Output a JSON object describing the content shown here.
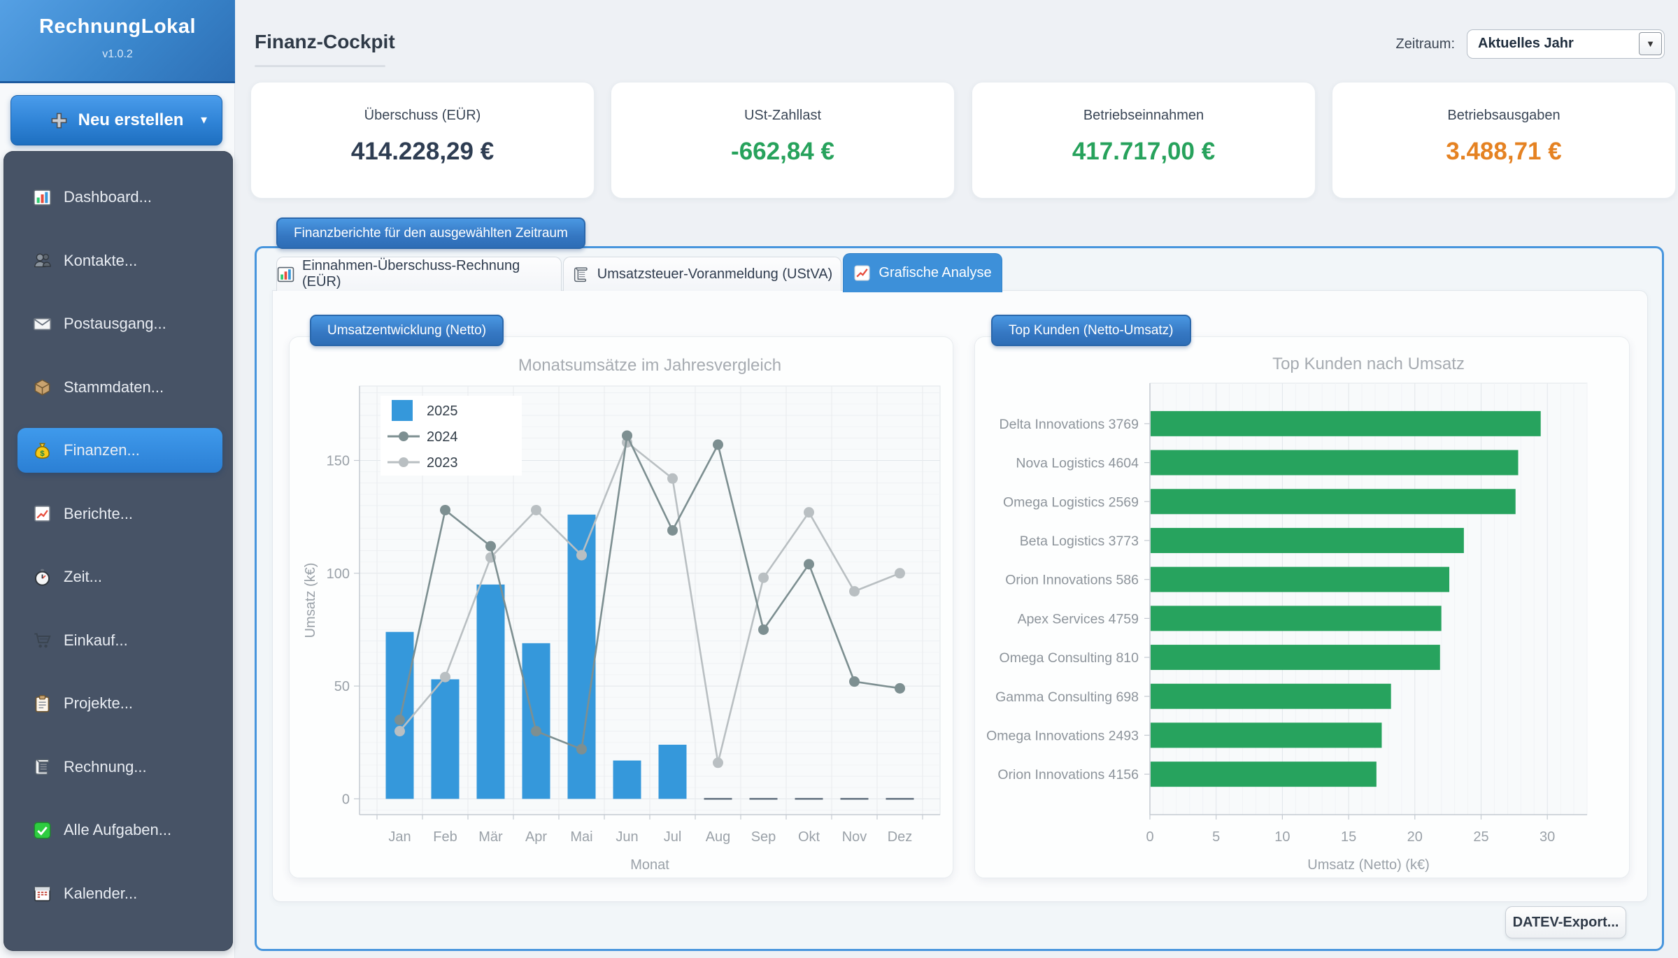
{
  "app": {
    "name": "RechnungLokal",
    "version": "v1.0.2"
  },
  "sidebar": {
    "new_button": {
      "label": "Neu erstellen"
    },
    "items": [
      {
        "id": "dashboard",
        "icon": "dashboard-icon",
        "label": "Dashboard...",
        "active": false
      },
      {
        "id": "kontakte",
        "icon": "contacts-icon",
        "label": "Kontakte...",
        "active": false
      },
      {
        "id": "postausgang",
        "icon": "mail-icon",
        "label": "Postausgang...",
        "active": false
      },
      {
        "id": "stammdaten",
        "icon": "box-icon",
        "label": "Stammdaten...",
        "active": false
      },
      {
        "id": "finanzen",
        "icon": "moneybag-icon",
        "label": "Finanzen...",
        "active": true
      },
      {
        "id": "berichte",
        "icon": "report-icon",
        "label": "Berichte...",
        "active": false
      },
      {
        "id": "zeit",
        "icon": "stopwatch-icon",
        "label": "Zeit...",
        "active": false
      },
      {
        "id": "einkauf",
        "icon": "cart-icon",
        "label": "Einkauf...",
        "active": false
      },
      {
        "id": "projekte",
        "icon": "clipboard-icon",
        "label": "Projekte...",
        "active": false
      },
      {
        "id": "rechnung",
        "icon": "scroll-icon",
        "label": "Rechnung...",
        "active": false
      },
      {
        "id": "alle-aufgaben",
        "icon": "check-icon",
        "label": "Alle Aufgaben...",
        "active": false
      },
      {
        "id": "kalender",
        "icon": "calendar-icon",
        "label": "Kalender...",
        "active": false
      }
    ]
  },
  "header": {
    "title": "Finanz-Cockpit",
    "period_label": "Zeitraum:",
    "period_value": "Aktuelles Jahr"
  },
  "kpis": [
    {
      "label": "Überschuss (EÜR)",
      "value": "414.228,29 €",
      "color": "#2e3d52"
    },
    {
      "label": "USt-Zahllast",
      "value": "-662,84 €",
      "color": "#27a25c"
    },
    {
      "label": "Betriebseinnahmen",
      "value": "417.717,00 €",
      "color": "#27a25c"
    },
    {
      "label": "Betriebsausgaben",
      "value": "3.488,71 €",
      "color": "#e58222"
    }
  ],
  "reports": {
    "legend": "Finanzberichte für den ausgewählten Zeitraum",
    "tabs": [
      {
        "id": "euer",
        "icon": "barchart-icon",
        "label": "Einnahmen-Überschuss-Rechnung (EÜR)",
        "active": false
      },
      {
        "id": "ustva",
        "icon": "scroll-icon",
        "label": "Umsatzsteuer-Voranmeldung (UStVA)",
        "active": false
      },
      {
        "id": "grafik",
        "icon": "linechart-icon",
        "label": "Grafische Analyse",
        "active": true
      }
    ]
  },
  "charts": {
    "left_badge": "Umsatzentwicklung (Netto)",
    "right_badge": "Top Kunden (Netto-Umsatz)"
  },
  "chart_data": [
    {
      "type": "bar",
      "title": "Monatsumsätze im Jahresvergleich",
      "categories": [
        "Jan",
        "Feb",
        "Mär",
        "Apr",
        "Mai",
        "Jun",
        "Jul",
        "Aug",
        "Sep",
        "Okt",
        "Nov",
        "Dez"
      ],
      "series": [
        {
          "name": "2025",
          "type": "bar",
          "color": "#3598db",
          "values": [
            74,
            53,
            95,
            69,
            126,
            17,
            24,
            0,
            0,
            0,
            0,
            0
          ]
        },
        {
          "name": "2024",
          "type": "line",
          "color": "#7d8f91",
          "values": [
            35,
            128,
            112,
            30,
            22,
            161,
            119,
            157,
            75,
            104,
            52,
            49
          ]
        },
        {
          "name": "2023",
          "type": "line",
          "color": "#b9bfc2",
          "values": [
            30,
            54,
            107,
            128,
            108,
            158,
            142,
            16,
            98,
            127,
            92,
            100
          ]
        }
      ],
      "xlabel": "Monat",
      "ylabel": "Umsatz (k€)",
      "yticks": [
        0,
        50,
        100,
        150
      ],
      "ylim": [
        -7,
        183
      ],
      "grid": true,
      "legend_position": "top-left"
    },
    {
      "type": "bar-horizontal",
      "title": "Top Kunden nach Umsatz",
      "categories": [
        "Delta Innovations 3769",
        "Nova Logistics 4604",
        "Omega Logistics 2569",
        "Beta Logistics 3773",
        "Orion Innovations 586",
        "Apex Services 4759",
        "Omega Consulting 810",
        "Gamma Consulting 698",
        "Omega Innovations 2493",
        "Orion Innovations 4156"
      ],
      "values": [
        29.5,
        27.8,
        27.6,
        23.7,
        22.6,
        22.0,
        21.9,
        18.2,
        17.5,
        17.1
      ],
      "color": "#27a35e",
      "xlabel": "Umsatz (Netto) (k€)",
      "xticks": [
        0,
        5,
        10,
        15,
        20,
        25,
        30
      ],
      "xlim": [
        0,
        33
      ],
      "grid": true
    }
  ],
  "export_button": "DATEV-Export..."
}
